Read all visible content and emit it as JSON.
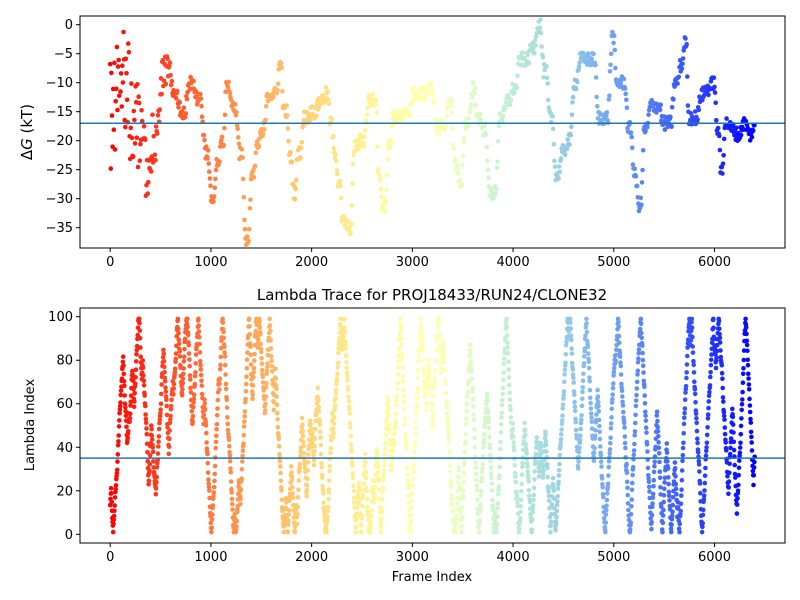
{
  "chart_data": [
    {
      "type": "scatter",
      "title": "",
      "xlabel": "",
      "ylabel": "ΔG (kT)",
      "ylabel_symbol": "Δ",
      "ylabel_var": "G",
      "ylabel_unit": " (kT)",
      "xlim": [
        -300,
        6700
      ],
      "ylim": [
        -38.5,
        1.5
      ],
      "xticks": [
        0,
        1000,
        2000,
        3000,
        4000,
        5000,
        6000
      ],
      "yticks": [
        0,
        -5,
        -10,
        -15,
        -20,
        -25,
        -30,
        -35
      ],
      "hline": -17,
      "hline_color": "#1f77b4",
      "colormap": "rainbow (warm at frame 0, violet at end)",
      "n_frames": 6400,
      "trace_knots": [
        [
          0,
          -18
        ],
        [
          60,
          -6
        ],
        [
          120,
          -10
        ],
        [
          200,
          -15
        ],
        [
          280,
          -18
        ],
        [
          360,
          -25
        ],
        [
          420,
          -20
        ],
        [
          500,
          -9
        ],
        [
          560,
          -7
        ],
        [
          620,
          -12
        ],
        [
          700,
          -15
        ],
        [
          780,
          -10
        ],
        [
          860,
          -13
        ],
        [
          940,
          -22
        ],
        [
          1000,
          -30
        ],
        [
          1050,
          -24
        ],
        [
          1100,
          -20
        ],
        [
          1150,
          -10
        ],
        [
          1200,
          -14
        ],
        [
          1280,
          -22
        ],
        [
          1340,
          -37
        ],
        [
          1400,
          -26
        ],
        [
          1450,
          -21
        ],
        [
          1500,
          -18
        ],
        [
          1560,
          -12
        ],
        [
          1620,
          -12
        ],
        [
          1680,
          -7
        ],
        [
          1720,
          -15
        ],
        [
          1780,
          -23
        ],
        [
          1820,
          -29
        ],
        [
          1860,
          -22
        ],
        [
          1920,
          -16
        ],
        [
          2000,
          -15
        ],
        [
          2080,
          -13
        ],
        [
          2140,
          -12
        ],
        [
          2180,
          -17
        ],
        [
          2220,
          -22
        ],
        [
          2260,
          -27
        ],
        [
          2300,
          -34
        ],
        [
          2360,
          -35
        ],
        [
          2420,
          -21
        ],
        [
          2480,
          -20
        ],
        [
          2560,
          -13
        ],
        [
          2620,
          -13
        ],
        [
          2660,
          -26
        ],
        [
          2700,
          -31
        ],
        [
          2760,
          -21
        ],
        [
          2800,
          -16
        ],
        [
          2880,
          -16
        ],
        [
          2940,
          -15
        ],
        [
          3000,
          -12
        ],
        [
          3080,
          -12
        ],
        [
          3160,
          -11
        ],
        [
          3240,
          -18
        ],
        [
          3300,
          -17
        ],
        [
          3360,
          -14
        ],
        [
          3420,
          -24
        ],
        [
          3460,
          -27
        ],
        [
          3520,
          -17
        ],
        [
          3600,
          -11
        ],
        [
          3640,
          -16
        ],
        [
          3700,
          -18
        ],
        [
          3760,
          -29
        ],
        [
          3800,
          -29
        ],
        [
          3860,
          -16
        ],
        [
          3940,
          -13
        ],
        [
          4000,
          -11
        ],
        [
          4060,
          -6
        ],
        [
          4120,
          -6
        ],
        [
          4180,
          -4
        ],
        [
          4240,
          0
        ],
        [
          4300,
          -8
        ],
        [
          4360,
          -16
        ],
        [
          4420,
          -26
        ],
        [
          4480,
          -22
        ],
        [
          4540,
          -20
        ],
        [
          4600,
          -10
        ],
        [
          4660,
          -6
        ],
        [
          4720,
          -6
        ],
        [
          4780,
          -6
        ],
        [
          4840,
          -16
        ],
        [
          4900,
          -16
        ],
        [
          4980,
          -2
        ],
        [
          5020,
          -10
        ],
        [
          5080,
          -10
        ],
        [
          5140,
          -18
        ],
        [
          5200,
          -26
        ],
        [
          5240,
          -31
        ],
        [
          5300,
          -18
        ],
        [
          5360,
          -14
        ],
        [
          5440,
          -14
        ],
        [
          5480,
          -17
        ],
        [
          5540,
          -17
        ],
        [
          5600,
          -10
        ],
        [
          5660,
          -7
        ],
        [
          5700,
          -3
        ],
        [
          5740,
          -16
        ],
        [
          5800,
          -16
        ],
        [
          5860,
          -12
        ],
        [
          5920,
          -11
        ],
        [
          5980,
          -10
        ],
        [
          6020,
          -18
        ],
        [
          6060,
          -25
        ],
        [
          6100,
          -17
        ],
        [
          6160,
          -18
        ],
        [
          6220,
          -19
        ],
        [
          6280,
          -17
        ],
        [
          6340,
          -19
        ],
        [
          6380,
          -18
        ]
      ]
    },
    {
      "type": "scatter",
      "title": "Lambda Trace for PROJ18433/RUN24/CLONE32",
      "xlabel": "Frame Index",
      "ylabel": "Lambda Index",
      "xlim": [
        -300,
        6700
      ],
      "ylim": [
        -4,
        104
      ],
      "xticks": [
        0,
        1000,
        2000,
        3000,
        4000,
        5000,
        6000
      ],
      "yticks": [
        0,
        20,
        40,
        60,
        80,
        100
      ],
      "hline": 35,
      "hline_color": "#1f77b4",
      "colormap": "rainbow (warm at frame 0, violet at end)",
      "n_frames": 6400,
      "lambda_range": [
        1,
        99
      ]
    }
  ]
}
